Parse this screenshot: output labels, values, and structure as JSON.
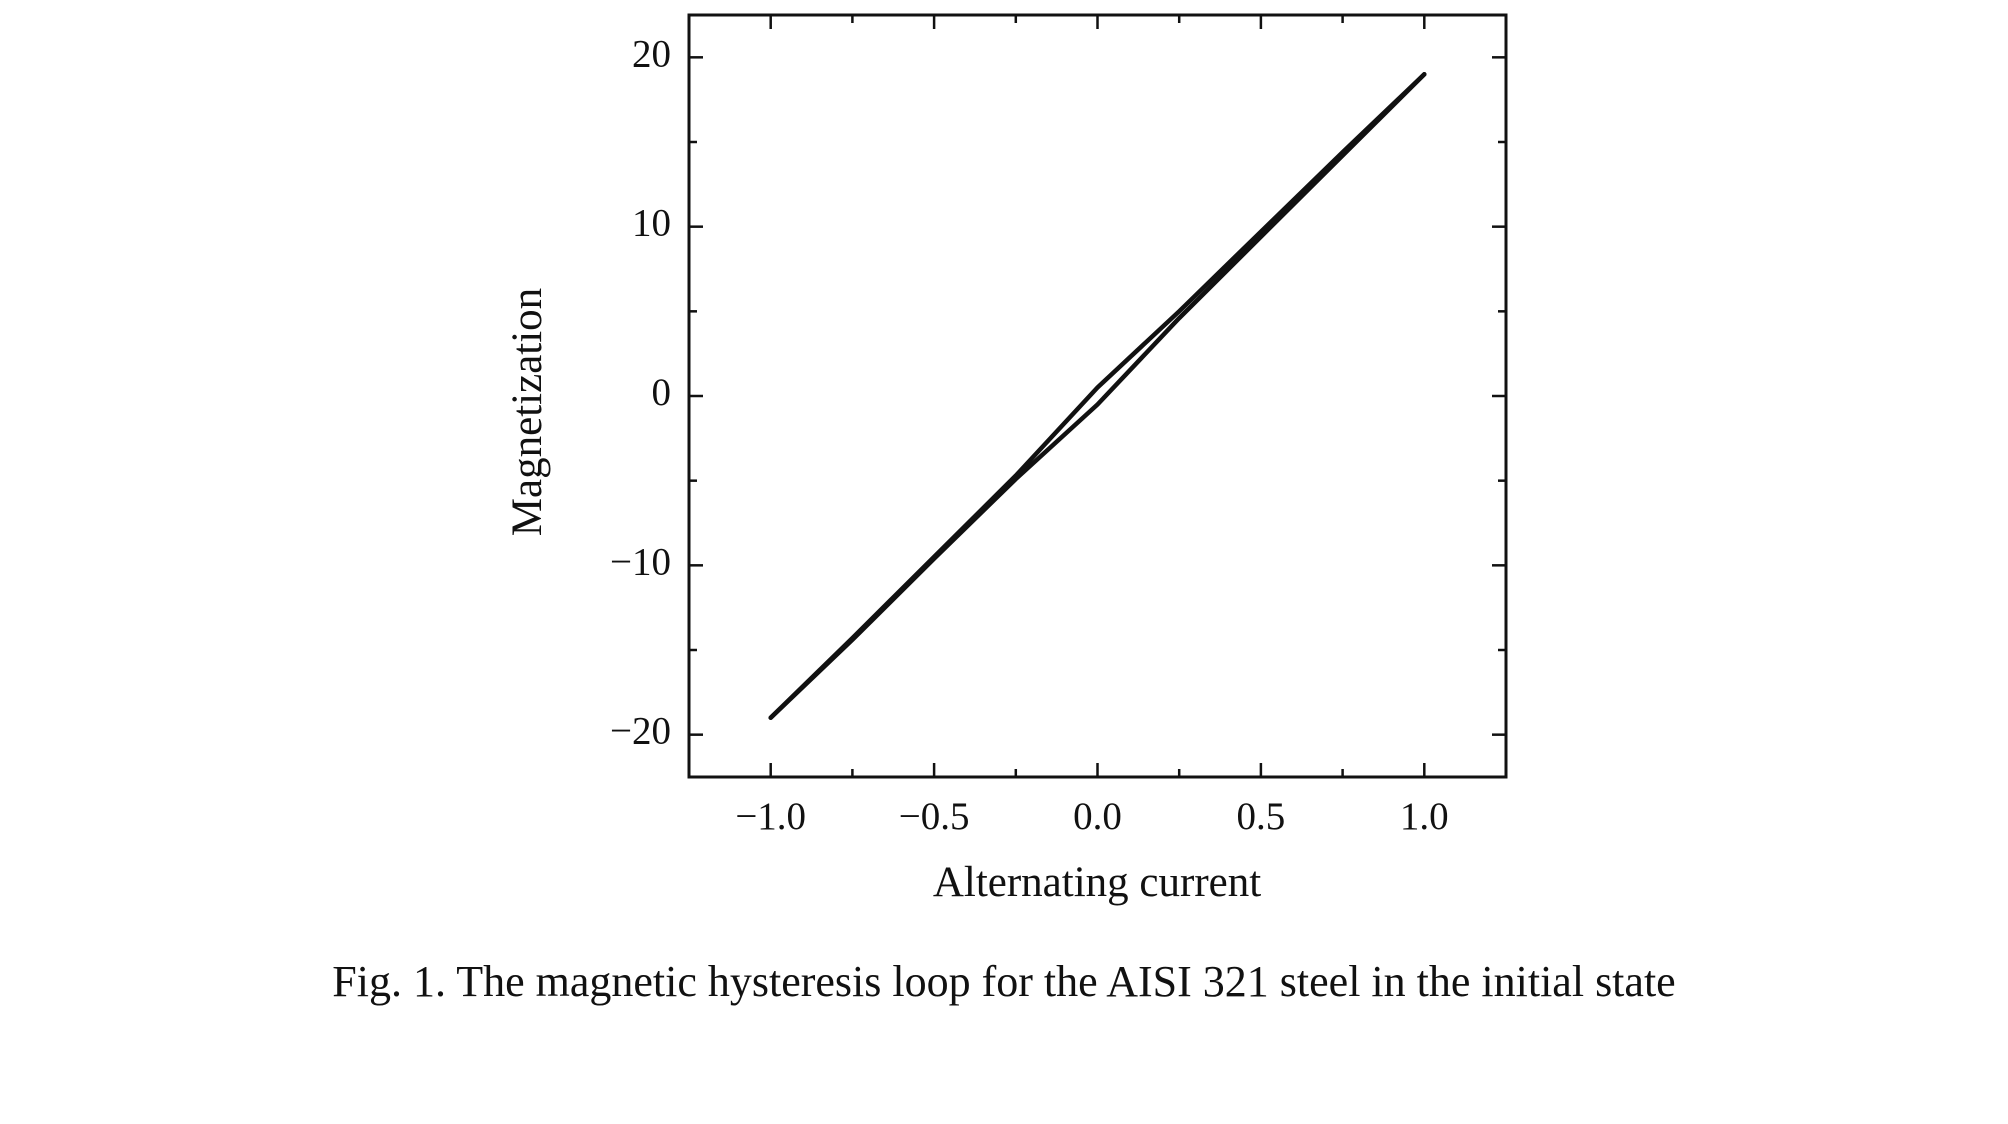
{
  "chart_data": {
    "type": "line",
    "caption": "Fig. 1. The magnetic hysteresis loop for the AISI 321 steel in the initial state",
    "xlabel": "Alternating current",
    "ylabel": "Magnetization",
    "xlim": [
      -1.25,
      1.25
    ],
    "ylim": [
      -22.5,
      22.5
    ],
    "xticks": [
      {
        "value": -1.0,
        "label": "−1.0"
      },
      {
        "value": -0.5,
        "label": "−0.5"
      },
      {
        "value": 0.0,
        "label": "0.0"
      },
      {
        "value": 0.5,
        "label": "0.5"
      },
      {
        "value": 1.0,
        "label": "1.0"
      }
    ],
    "yticks": [
      {
        "value": -20,
        "label": "−20"
      },
      {
        "value": -10,
        "label": "−10"
      },
      0,
      10,
      20
    ],
    "xminorticks": [
      -1.25,
      -0.75,
      -0.25,
      0.25,
      0.75,
      1.25
    ],
    "yminorticks": [
      -15,
      -5,
      5,
      15
    ],
    "grid": false,
    "series": [
      {
        "color": "#111111",
        "x": [
          -1.0,
          -0.75,
          -0.5,
          -0.25,
          0.0,
          0.25,
          0.5,
          0.75,
          1.0
        ],
        "values": [
          -19,
          -14.4,
          -9.6,
          -4.9,
          -0.5,
          4.6,
          9.4,
          14.2,
          19
        ]
      },
      {
        "color": "#111111",
        "x": [
          1.0,
          0.75,
          0.5,
          0.25,
          0.0,
          -0.25,
          -0.5,
          -0.75,
          -1.0
        ],
        "values": [
          19,
          14.4,
          9.7,
          5.0,
          0.5,
          -4.7,
          -9.5,
          -14.3,
          -19
        ]
      }
    ]
  }
}
